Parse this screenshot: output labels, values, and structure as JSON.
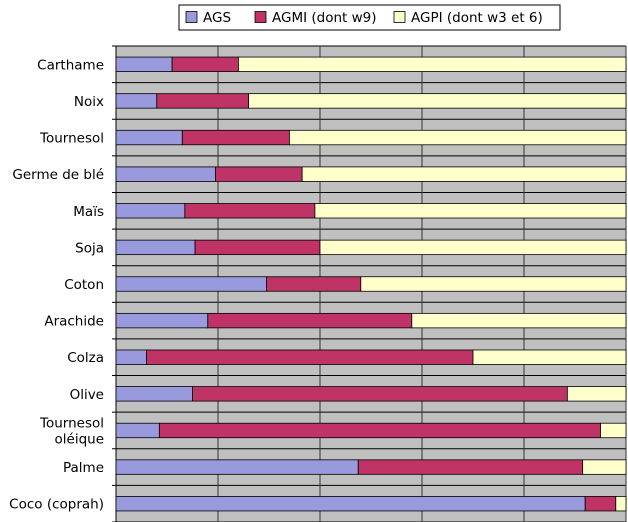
{
  "chart_data": {
    "type": "bar",
    "orientation": "horizontal",
    "stacked": true,
    "percent": true,
    "xlim": [
      0,
      100
    ],
    "grid": true,
    "legend_position": "top",
    "categories": [
      "Carthame",
      "Noix",
      "Tournesol",
      "Germe de blé",
      "Maïs",
      "Soja",
      "Coton",
      "Arachide",
      "Colza",
      "Olive",
      "Tournesol\noléique",
      "Palme",
      "Coco (coprah)"
    ],
    "series": [
      {
        "name": "AGS",
        "color": "#9999dd",
        "values": [
          11,
          8,
          13,
          19.5,
          13.5,
          15.5,
          29.5,
          18,
          6,
          15,
          8.5,
          47.5,
          92
        ]
      },
      {
        "name": "AGMI (dont w9)",
        "color": "#bf3366",
        "values": [
          13,
          18,
          21,
          17,
          25.5,
          24.5,
          18.5,
          40,
          64,
          73.5,
          86.5,
          44,
          6
        ]
      },
      {
        "name": "AGPI (dont w3 et 6)",
        "color": "#ffffcc",
        "values": [
          76,
          74,
          66,
          63.5,
          61,
          60,
          52,
          42,
          30,
          11.5,
          5,
          8.5,
          2
        ]
      }
    ]
  }
}
